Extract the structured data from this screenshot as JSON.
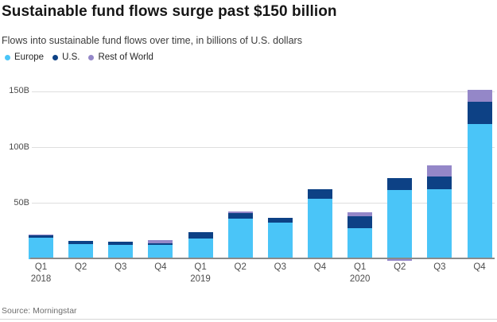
{
  "header": {
    "title": "Sustainable fund flows surge past $150 billion",
    "subtitle": "Flows into sustainable fund flows over time, in billions of U.S. dollars"
  },
  "footer": {
    "source": "Source: Morningstar"
  },
  "colors": {
    "europe": "#4AC5F8",
    "us": "#0D4185",
    "rest_of_world": "#9487C8",
    "grid": "#DEDEDE",
    "axis": "#8A8A8A"
  },
  "chart_data": {
    "type": "bar",
    "stacked": true,
    "title": "Sustainable fund flows surge past $150 billion",
    "subtitle": "Flows into sustainable fund flows over time, in billions of U.S. dollars",
    "xlabel": "",
    "ylabel": "billions of U.S. dollars",
    "grid": true,
    "legend_position": "top-left",
    "categories": [
      "Q1",
      "Q2",
      "Q3",
      "Q4",
      "Q1",
      "Q2",
      "Q3",
      "Q4",
      "Q1",
      "Q2",
      "Q3",
      "Q4"
    ],
    "year_labels": [
      {
        "index": 0,
        "year": "2018"
      },
      {
        "index": 4,
        "year": "2019"
      },
      {
        "index": 8,
        "year": "2020"
      }
    ],
    "series": [
      {
        "name": "Europe",
        "color": "#4AC5F8",
        "values": [
          19,
          13.5,
          13,
          13,
          18.5,
          36.5,
          33,
          54,
          28,
          62,
          63,
          121
        ]
      },
      {
        "name": "U.S.",
        "color": "#0D4185",
        "values": [
          2.5,
          3,
          2.5,
          1.5,
          5.5,
          5,
          4,
          9,
          10.5,
          10.5,
          11,
          20
        ]
      },
      {
        "name": "Rest of World",
        "color": "#9487C8",
        "values": [
          0.5,
          0,
          0,
          2.5,
          0,
          1.5,
          0,
          0,
          3.5,
          -1.5,
          10,
          11
        ]
      }
    ],
    "y_ticks": [
      {
        "value": 50,
        "label": "50B"
      },
      {
        "value": 100,
        "label": "100B"
      },
      {
        "value": 150,
        "label": "150B"
      }
    ],
    "ylim": [
      0,
      161
    ]
  }
}
